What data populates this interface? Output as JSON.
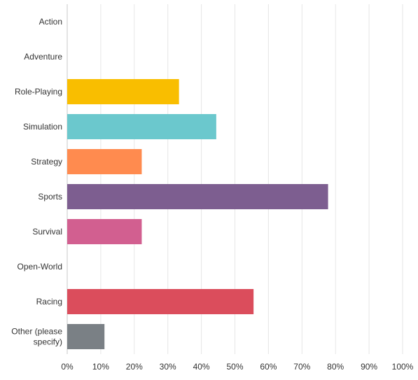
{
  "chart_data": {
    "type": "bar",
    "orientation": "horizontal",
    "categories": [
      "Action",
      "Adventure",
      "Role-Playing",
      "Simulation",
      "Strategy",
      "Sports",
      "Survival",
      "Open-World",
      "Racing",
      "Other (please specify)"
    ],
    "category_lines": [
      [
        "Action"
      ],
      [
        "Adventure"
      ],
      [
        "Role-Playing"
      ],
      [
        "Simulation"
      ],
      [
        "Strategy"
      ],
      [
        "Sports"
      ],
      [
        "Survival"
      ],
      [
        "Open-World"
      ],
      [
        "Racing"
      ],
      [
        "Other (please",
        "specify)"
      ]
    ],
    "values": [
      0,
      0,
      33.33,
      44.44,
      22.22,
      77.78,
      22.22,
      0,
      55.56,
      11.11
    ],
    "colors": [
      "#00BF6F",
      "#507CB6",
      "#F9BE00",
      "#6BC8CD",
      "#FF8B4F",
      "#7D5E90",
      "#D25F90",
      "#A0A0A0",
      "#DB4D5C",
      "#7A8085"
    ],
    "xlim": [
      0,
      100
    ],
    "x_ticks": [
      0,
      10,
      20,
      30,
      40,
      50,
      60,
      70,
      80,
      90,
      100
    ],
    "x_tick_labels": [
      "0%",
      "10%",
      "20%",
      "30%",
      "40%",
      "50%",
      "60%",
      "70%",
      "80%",
      "90%",
      "100%"
    ],
    "grid": true,
    "title": "",
    "xlabel": "",
    "ylabel": ""
  }
}
